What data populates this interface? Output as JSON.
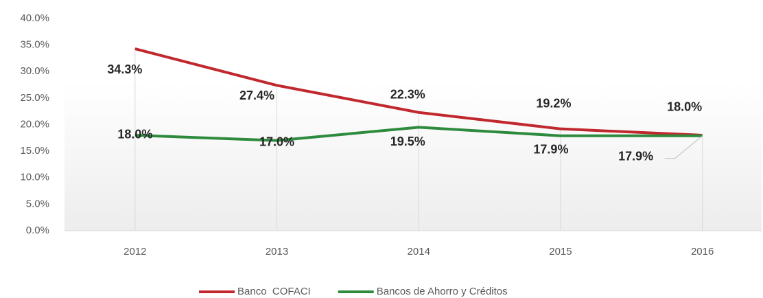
{
  "chart_data": {
    "type": "line",
    "categories": [
      "2012",
      "2013",
      "2014",
      "2015",
      "2016"
    ],
    "series": [
      {
        "name": "Banco  COFACI",
        "color": "#c0282e",
        "values": [
          34.3,
          27.4,
          22.3,
          19.2,
          18.0
        ],
        "value_labels": [
          "34.3%",
          "27.4%",
          "22.3%",
          "19.2%",
          "18.0%"
        ]
      },
      {
        "name": "Bancos de Ahorro y Créditos",
        "color": "#2e8b3e",
        "values": [
          18.0,
          17.0,
          19.5,
          17.9,
          17.9
        ],
        "value_labels": [
          "18.0%",
          "17.0%",
          "19.5%",
          "17.9%",
          "17.9%"
        ]
      }
    ],
    "ylim": [
      0,
      40
    ],
    "yticks": [
      {
        "value": 0,
        "label": "0.0%"
      },
      {
        "value": 5,
        "label": "5.0%"
      },
      {
        "value": 10,
        "label": "10.0%"
      },
      {
        "value": 15,
        "label": "15.0%"
      },
      {
        "value": 20,
        "label": "20.0%"
      },
      {
        "value": 25,
        "label": "25.0%"
      },
      {
        "value": 30,
        "label": "30.0%"
      },
      {
        "value": 35,
        "label": "35.0%"
      },
      {
        "value": 40,
        "label": "40.0%"
      }
    ],
    "legend": "bottom"
  }
}
